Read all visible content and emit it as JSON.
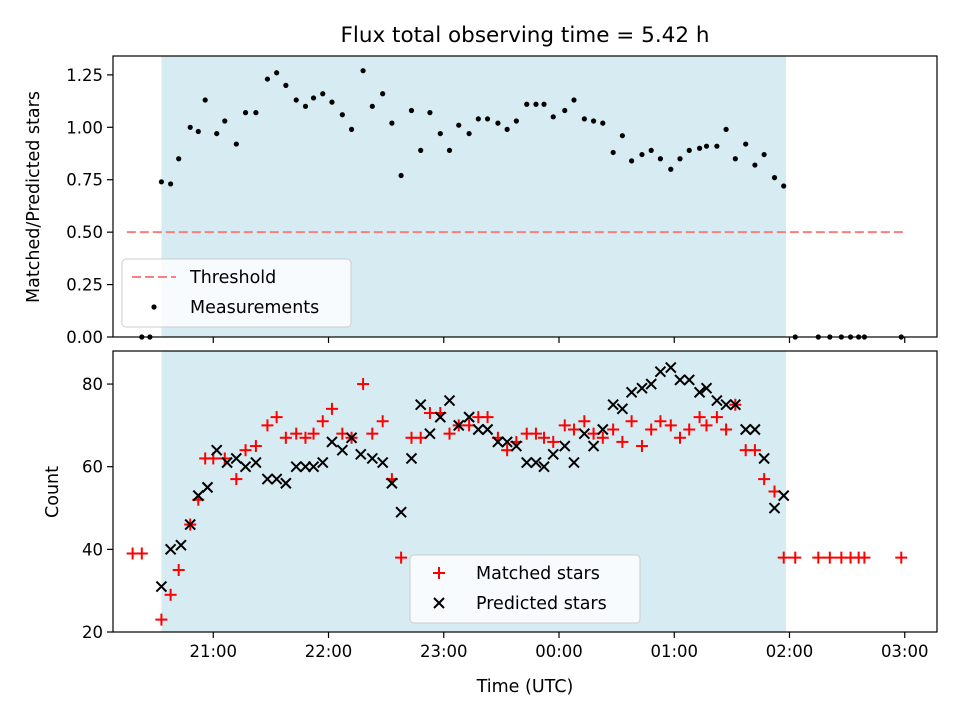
{
  "chart_data": [
    {
      "type": "scatter",
      "title": "Flux total observing time = 5.42 h",
      "xlabel": "",
      "ylabel": "Matched/Predicted stars",
      "ylim": [
        0,
        1.34
      ],
      "yticks": [
        0,
        0.25,
        0.5,
        0.75,
        1.0,
        1.25
      ],
      "ytick_labels": [
        "0.00",
        "0.25",
        "0.50",
        "0.75",
        "1.00",
        "1.25"
      ],
      "xticks": [
        21,
        22,
        23,
        24,
        25,
        26,
        27
      ],
      "observing_window": [
        20.55,
        25.97
      ],
      "threshold": {
        "name": "Threshold",
        "value": 0.5,
        "x_range": [
          20.25,
          27.0
        ],
        "color": "#f77f7f"
      },
      "legend": {
        "location": "lower-left",
        "entries": [
          "Threshold",
          "Measurements"
        ]
      },
      "series": [
        {
          "name": "Measurements",
          "color": "#000000",
          "marker": "dot",
          "x": [
            20.38,
            20.45,
            20.55,
            20.63,
            20.7,
            20.8,
            20.87,
            20.93,
            21.03,
            21.1,
            21.2,
            21.28,
            21.37,
            21.47,
            21.55,
            21.63,
            21.72,
            21.8,
            21.87,
            21.95,
            22.03,
            22.12,
            22.2,
            22.3,
            22.38,
            22.47,
            22.55,
            22.63,
            22.72,
            22.8,
            22.88,
            22.97,
            23.05,
            23.13,
            23.22,
            23.3,
            23.38,
            23.47,
            23.55,
            23.63,
            23.72,
            23.8,
            23.87,
            23.95,
            24.05,
            24.13,
            24.22,
            24.3,
            24.38,
            24.47,
            24.55,
            24.63,
            24.72,
            24.8,
            24.88,
            24.97,
            25.05,
            25.13,
            25.22,
            25.28,
            25.37,
            25.45,
            25.53,
            25.62,
            25.7,
            25.78,
            25.87,
            25.95,
            26.05,
            26.25,
            26.35,
            26.45,
            26.53,
            26.6,
            26.65,
            26.97
          ],
          "values": [
            0.0,
            0.0,
            0.74,
            0.73,
            0.85,
            1.0,
            0.98,
            1.13,
            0.97,
            1.03,
            0.92,
            1.07,
            1.07,
            1.23,
            1.26,
            1.2,
            1.13,
            1.1,
            1.14,
            1.16,
            1.12,
            1.06,
            0.99,
            1.27,
            1.1,
            1.16,
            1.02,
            0.77,
            1.08,
            0.89,
            1.07,
            0.97,
            0.89,
            1.01,
            0.97,
            1.04,
            1.04,
            1.02,
            0.99,
            1.03,
            1.11,
            1.11,
            1.11,
            1.05,
            1.08,
            1.13,
            1.04,
            1.03,
            1.02,
            0.88,
            0.96,
            0.84,
            0.87,
            0.89,
            0.85,
            0.8,
            0.85,
            0.89,
            0.9,
            0.91,
            0.91,
            0.99,
            0.85,
            0.92,
            0.82,
            0.87,
            0.76,
            0.72,
            0.0,
            0.0,
            0.0,
            0.0,
            0.0,
            0.0,
            0.0,
            0.0
          ]
        }
      ]
    },
    {
      "type": "scatter",
      "title": "",
      "xlabel": "Time (UTC)",
      "ylabel": "Count",
      "ylim": [
        20,
        88
      ],
      "yticks": [
        20,
        40,
        60,
        80
      ],
      "ytick_labels": [
        "20",
        "40",
        "60",
        "80"
      ],
      "xticks": [
        21,
        22,
        23,
        24,
        25,
        26,
        27
      ],
      "xtick_labels": [
        "21:00",
        "22:00",
        "23:00",
        "00:00",
        "01:00",
        "02:00",
        "03:00"
      ],
      "observing_window": [
        20.55,
        25.97
      ],
      "legend": {
        "location": "lower-center",
        "entries": [
          "Matched stars",
          "Predicted stars"
        ]
      },
      "series": [
        {
          "name": "Matched stars",
          "color": "#ff0000",
          "marker": "plus",
          "x": [
            20.3,
            20.38,
            20.55,
            20.63,
            20.7,
            20.8,
            20.87,
            20.93,
            21.0,
            21.1,
            21.2,
            21.28,
            21.37,
            21.47,
            21.55,
            21.63,
            21.72,
            21.8,
            21.87,
            21.95,
            22.03,
            22.12,
            22.2,
            22.3,
            22.38,
            22.47,
            22.55,
            22.63,
            22.72,
            22.8,
            22.88,
            22.97,
            23.05,
            23.13,
            23.22,
            23.3,
            23.38,
            23.47,
            23.55,
            23.63,
            23.72,
            23.8,
            23.87,
            23.95,
            24.05,
            24.13,
            24.22,
            24.3,
            24.38,
            24.47,
            24.55,
            24.63,
            24.72,
            24.8,
            24.88,
            24.97,
            25.05,
            25.13,
            25.22,
            25.28,
            25.37,
            25.45,
            25.53,
            25.62,
            25.7,
            25.78,
            25.87,
            25.95,
            26.05,
            26.25,
            26.35,
            26.45,
            26.53,
            26.6,
            26.65,
            26.97
          ],
          "values": [
            39,
            39,
            23,
            29,
            35,
            46,
            52,
            62,
            62,
            62,
            57,
            64,
            65,
            70,
            72,
            67,
            68,
            67,
            68,
            71,
            74,
            68,
            67,
            80,
            68,
            71,
            57,
            38,
            67,
            67,
            73,
            73,
            68,
            70,
            70,
            72,
            72,
            67,
            64,
            66,
            68,
            68,
            67,
            66,
            70,
            69,
            71,
            68,
            67,
            69,
            66,
            71,
            65,
            69,
            71,
            70,
            67,
            69,
            72,
            70,
            72,
            69,
            75,
            64,
            64,
            57,
            54,
            38,
            38,
            38,
            38,
            38,
            38,
            38,
            38,
            38
          ]
        },
        {
          "name": "Predicted stars",
          "color": "#000000",
          "marker": "x",
          "x": [
            20.55,
            20.63,
            20.72,
            20.8,
            20.87,
            20.95,
            21.03,
            21.12,
            21.2,
            21.28,
            21.37,
            21.47,
            21.55,
            21.63,
            21.72,
            21.8,
            21.87,
            21.95,
            22.03,
            22.12,
            22.2,
            22.28,
            22.38,
            22.47,
            22.55,
            22.63,
            22.72,
            22.8,
            22.88,
            22.97,
            23.05,
            23.13,
            23.22,
            23.3,
            23.38,
            23.47,
            23.55,
            23.63,
            23.72,
            23.8,
            23.87,
            23.95,
            24.05,
            24.13,
            24.22,
            24.3,
            24.38,
            24.47,
            24.55,
            24.63,
            24.72,
            24.8,
            24.88,
            24.97,
            25.05,
            25.13,
            25.22,
            25.28,
            25.37,
            25.45,
            25.53,
            25.62,
            25.7,
            25.78,
            25.87,
            25.95
          ],
          "values": [
            31,
            40,
            41,
            46,
            53,
            55,
            64,
            61,
            62,
            60,
            61,
            57,
            57,
            56,
            60,
            60,
            60,
            61,
            66,
            64,
            67,
            63,
            62,
            61,
            56,
            49,
            62,
            75,
            68,
            72,
            76,
            70,
            72,
            69,
            69,
            66,
            66,
            65,
            61,
            61,
            60,
            63,
            65,
            61,
            68,
            65,
            69,
            75,
            74,
            78,
            79,
            80,
            83,
            84,
            81,
            81,
            78,
            79,
            76,
            75,
            75,
            69,
            69,
            62,
            50,
            53
          ]
        }
      ]
    }
  ]
}
